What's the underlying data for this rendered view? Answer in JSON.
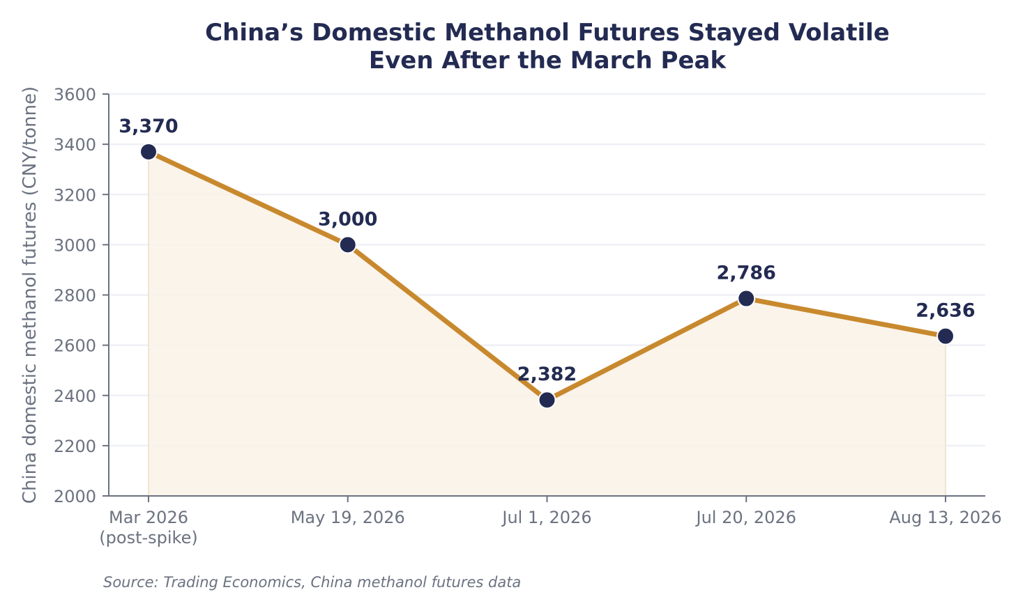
{
  "chart_data": {
    "type": "line",
    "title_lines": [
      "China’s Domestic Methanol Futures Stayed Volatile",
      "Even After the March Peak"
    ],
    "ylabel": "China domestic methanol futures (CNY/tonne)",
    "categories": [
      [
        "Mar 2026",
        "(post-spike)"
      ],
      [
        "May 19, 2026"
      ],
      [
        "Jul 1, 2026"
      ],
      [
        "Jul 20, 2026"
      ],
      [
        "Aug 13, 2026"
      ]
    ],
    "values": [
      3370,
      3000,
      2382,
      2786,
      2636
    ],
    "data_labels": [
      "3,370",
      "3,000",
      "2,382",
      "2,786",
      "2,636"
    ],
    "ylim": [
      2000,
      3600
    ],
    "yticks": [
      2000,
      2200,
      2400,
      2600,
      2800,
      3000,
      3200,
      3400,
      3600
    ],
    "ytick_labels": [
      "2000",
      "2200",
      "2400",
      "2600",
      "2800",
      "3000",
      "3200",
      "3400",
      "3600"
    ],
    "grid": true,
    "area_fill": true,
    "source": "Source: Trading Economics, China methanol futures data",
    "colors": {
      "line": "#c8892e",
      "marker": "#232b52",
      "area": "#f9f2e8",
      "grid": "#eef0f6",
      "axis": "#6b7280",
      "title": "#232b52"
    }
  }
}
